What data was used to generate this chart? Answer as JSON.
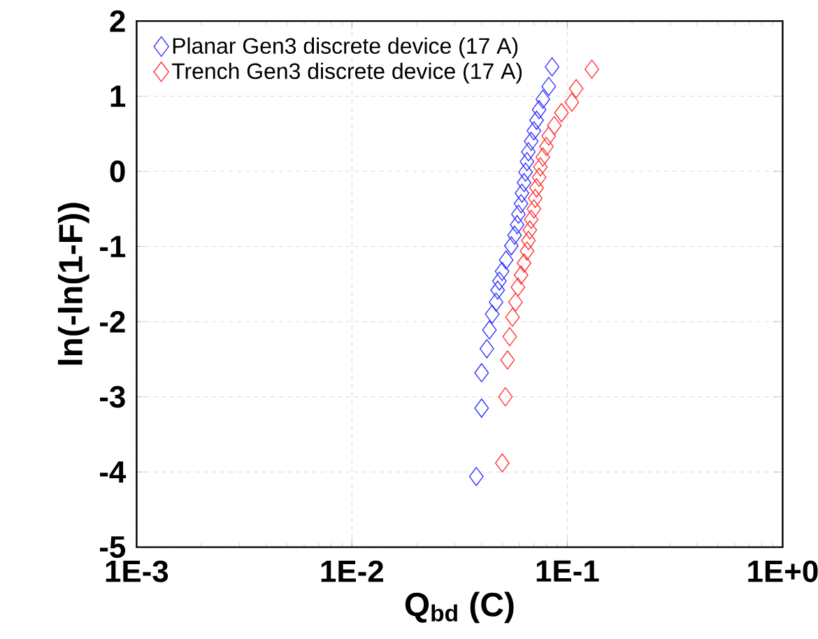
{
  "chart_data": {
    "type": "scatter",
    "xlabel": "Q$_{bd}$ (C)",
    "ylabel": "ln(-ln(1-F))",
    "log": "x",
    "grid": true,
    "legend": "top left",
    "marker": "diamond",
    "xlim": [
      0.001,
      1
    ],
    "xticks": [
      {
        "value": 0.001,
        "label": "1E-3"
      },
      {
        "value": 0.01,
        "label": "1E-2"
      },
      {
        "value": 0.1,
        "label": "1E-1"
      },
      {
        "value": 1,
        "label": "1E+0"
      }
    ],
    "ylim": [
      -5,
      2
    ],
    "yticks": [
      -5,
      -4,
      -3,
      -2,
      -1,
      0,
      1,
      2
    ],
    "series": [
      {
        "name": "Planar Gen3 discrete device (17 A)",
        "color": "#3333ff",
        "x": [
          0.0378,
          0.04,
          0.04,
          0.0423,
          0.0435,
          0.0448,
          0.0467,
          0.0475,
          0.0484,
          0.0498,
          0.052,
          0.055,
          0.0569,
          0.0585,
          0.0593,
          0.061,
          0.0616,
          0.063,
          0.064,
          0.065,
          0.066,
          0.068,
          0.07,
          0.072,
          0.074,
          0.077,
          0.082,
          0.085
        ],
        "values": [
          -4.06,
          -3.15,
          -2.68,
          -2.36,
          -2.11,
          -1.9,
          -1.74,
          -1.58,
          -1.46,
          -1.33,
          -1.18,
          -0.99,
          -0.85,
          -0.71,
          -0.57,
          -0.43,
          -0.29,
          -0.15,
          -0.01,
          0.13,
          0.26,
          0.4,
          0.54,
          0.68,
          0.82,
          0.96,
          1.13,
          1.39
        ]
      },
      {
        "name": "Trench Gen3 discrete device (17 A)",
        "color": "#ff3333",
        "x": [
          0.0499,
          0.0516,
          0.0528,
          0.054,
          0.0557,
          0.0575,
          0.059,
          0.061,
          0.063,
          0.065,
          0.066,
          0.067,
          0.068,
          0.07,
          0.071,
          0.072,
          0.074,
          0.075,
          0.077,
          0.08,
          0.082,
          0.087,
          0.094,
          0.105,
          0.11,
          0.13
        ],
        "values": [
          -3.88,
          -3.0,
          -2.51,
          -2.2,
          -1.94,
          -1.74,
          -1.54,
          -1.38,
          -1.22,
          -1.06,
          -0.92,
          -0.78,
          -0.64,
          -0.5,
          -0.36,
          -0.22,
          -0.08,
          0.06,
          0.19,
          0.33,
          0.47,
          0.61,
          0.78,
          0.92,
          1.1,
          1.36
        ]
      }
    ]
  }
}
